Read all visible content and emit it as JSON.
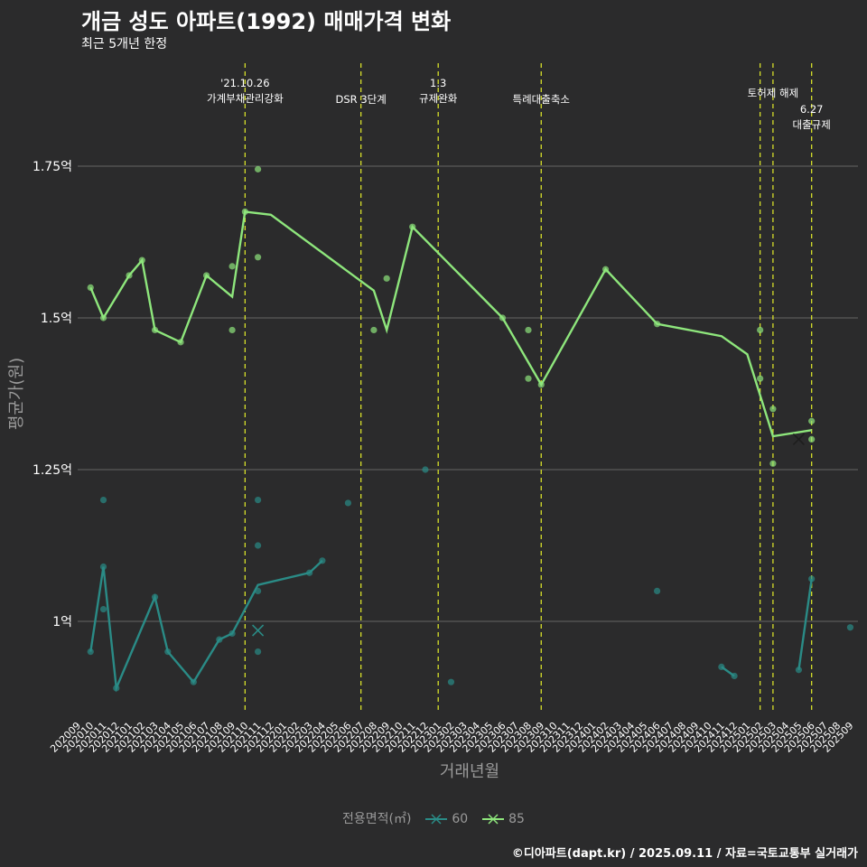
{
  "header": {
    "title": "개금 성도 아파트(1992) 매매가격 변화",
    "subtitle": "최근 5개년 한정"
  },
  "caption": "©디아파트(dapt.kr) / 2025.09.11 / 자료=국토교통부 실거래가",
  "colors": {
    "background": "#2b2b2c",
    "series_60": "#2a8b86",
    "series_85": "#8ee67c",
    "event_line": "#d7e02a",
    "grid": "#5a5a5a"
  },
  "chart_data": {
    "type": "line",
    "xlabel": "거래년월",
    "ylabel": "평균가(원)",
    "ylim": [
      0.85,
      1.8
    ],
    "y_ticks": [
      {
        "value": 1.0,
        "label": "1억"
      },
      {
        "value": 1.25,
        "label": "1.25억"
      },
      {
        "value": 1.5,
        "label": "1.5억"
      },
      {
        "value": 1.75,
        "label": "1.75억"
      }
    ],
    "x": [
      "202009",
      "202010",
      "202011",
      "202012",
      "202101",
      "202102",
      "202103",
      "202104",
      "202105",
      "202106",
      "202107",
      "202108",
      "202109",
      "202110",
      "202111",
      "202112",
      "202201",
      "202202",
      "202203",
      "202204",
      "202205",
      "202206",
      "202207",
      "202208",
      "202209",
      "202210",
      "202211",
      "202212",
      "202301",
      "202302",
      "202303",
      "202304",
      "202305",
      "202306",
      "202307",
      "202308",
      "202309",
      "202310",
      "202311",
      "202312",
      "202401",
      "202402",
      "202403",
      "202404",
      "202405",
      "202406",
      "202407",
      "202408",
      "202409",
      "202410",
      "202411",
      "202412",
      "202501",
      "202502",
      "202503",
      "202504",
      "202505",
      "202506",
      "202507",
      "202508",
      "202509"
    ],
    "legend": {
      "title": "전용면적(㎡)",
      "position": "bottom"
    },
    "events": [
      {
        "month": "202110",
        "lines": [
          "'21.10.26",
          "가계부채관리강화"
        ],
        "level": 0
      },
      {
        "month": "202207",
        "lines": [
          "DSR 3단계"
        ],
        "level": 1
      },
      {
        "month": "202301",
        "lines": [
          "1.3",
          "규제완화"
        ],
        "level": 0
      },
      {
        "month": "202309",
        "lines": [
          "특례대출축소"
        ],
        "level": 1
      },
      {
        "month": "202502",
        "lines": [],
        "level": 0
      },
      {
        "month": "202503",
        "lines": [
          "토허제 해제"
        ],
        "level": 0.6
      },
      {
        "month": "202506",
        "lines": [
          "6.27",
          "대출규제"
        ],
        "level": 1.6
      }
    ],
    "series": [
      {
        "name": "60",
        "line": [
          [
            "202010",
            0.95
          ],
          [
            "202011",
            1.09
          ],
          [
            "202012",
            0.89
          ],
          [
            "202103",
            1.04
          ],
          [
            "202104",
            0.95
          ],
          [
            "202106",
            0.9
          ],
          [
            "202108",
            0.97
          ],
          [
            "202109",
            0.98
          ],
          [
            "202111",
            1.06
          ],
          [
            "202203",
            1.08
          ],
          [
            "202204",
            1.1
          ],
          [
            "202411",
            0.925
          ],
          [
            "202412",
            0.91
          ],
          [
            "202505",
            0.92
          ],
          [
            "202506",
            1.07
          ]
        ],
        "points": [
          [
            "202010",
            0.95
          ],
          [
            "202011",
            1.2
          ],
          [
            "202011",
            1.02
          ],
          [
            "202011",
            1.09
          ],
          [
            "202012",
            0.89
          ],
          [
            "202103",
            1.04
          ],
          [
            "202104",
            0.95
          ],
          [
            "202106",
            0.9
          ],
          [
            "202108",
            0.97
          ],
          [
            "202109",
            0.98
          ],
          [
            "202111",
            0.95
          ],
          [
            "202111",
            1.05
          ],
          [
            "202111",
            1.125
          ],
          [
            "202111",
            1.2
          ],
          [
            "202203",
            1.08
          ],
          [
            "202204",
            1.1
          ],
          [
            "202206",
            1.195
          ],
          [
            "202212",
            1.25
          ],
          [
            "202302",
            0.9
          ],
          [
            "202406",
            1.05
          ],
          [
            "202411",
            0.925
          ],
          [
            "202412",
            0.91
          ],
          [
            "202505",
            0.92
          ],
          [
            "202506",
            1.07
          ],
          [
            "202509",
            0.99
          ]
        ],
        "marker": [
          "202111",
          0.985
        ]
      },
      {
        "name": "85",
        "line": [
          [
            "202010",
            1.55
          ],
          [
            "202011",
            1.5
          ],
          [
            "202101",
            1.57
          ],
          [
            "202102",
            1.595
          ],
          [
            "202103",
            1.48
          ],
          [
            "202105",
            1.46
          ],
          [
            "202107",
            1.57
          ],
          [
            "202109",
            1.535
          ],
          [
            "202110",
            1.675
          ],
          [
            "202112",
            1.67
          ],
          [
            "202208",
            1.545
          ],
          [
            "202209",
            1.48
          ],
          [
            "202211",
            1.65
          ],
          [
            "202306",
            1.5
          ],
          [
            "202309",
            1.39
          ],
          [
            "202402",
            1.58
          ],
          [
            "202406",
            1.49
          ],
          [
            "202411",
            1.47
          ],
          [
            "202501",
            1.44
          ],
          [
            "202503",
            1.305
          ],
          [
            "202506",
            1.315
          ]
        ],
        "points": [
          [
            "202010",
            1.55
          ],
          [
            "202011",
            1.5
          ],
          [
            "202101",
            1.57
          ],
          [
            "202102",
            1.595
          ],
          [
            "202103",
            1.48
          ],
          [
            "202105",
            1.46
          ],
          [
            "202107",
            1.57
          ],
          [
            "202109",
            1.585
          ],
          [
            "202109",
            1.48
          ],
          [
            "202110",
            1.675
          ],
          [
            "202111",
            1.745
          ],
          [
            "202111",
            1.6
          ],
          [
            "202208",
            1.48
          ],
          [
            "202209",
            1.565
          ],
          [
            "202211",
            1.65
          ],
          [
            "202306",
            1.5
          ],
          [
            "202308",
            1.48
          ],
          [
            "202308",
            1.4
          ],
          [
            "202309",
            1.39
          ],
          [
            "202402",
            1.58
          ],
          [
            "202406",
            1.49
          ],
          [
            "202502",
            1.48
          ],
          [
            "202502",
            1.4
          ],
          [
            "202503",
            1.35
          ],
          [
            "202503",
            1.26
          ],
          [
            "202506",
            1.33
          ],
          [
            "202506",
            1.3
          ]
        ],
        "marker": [
          "202505",
          1.3
        ]
      }
    ]
  }
}
